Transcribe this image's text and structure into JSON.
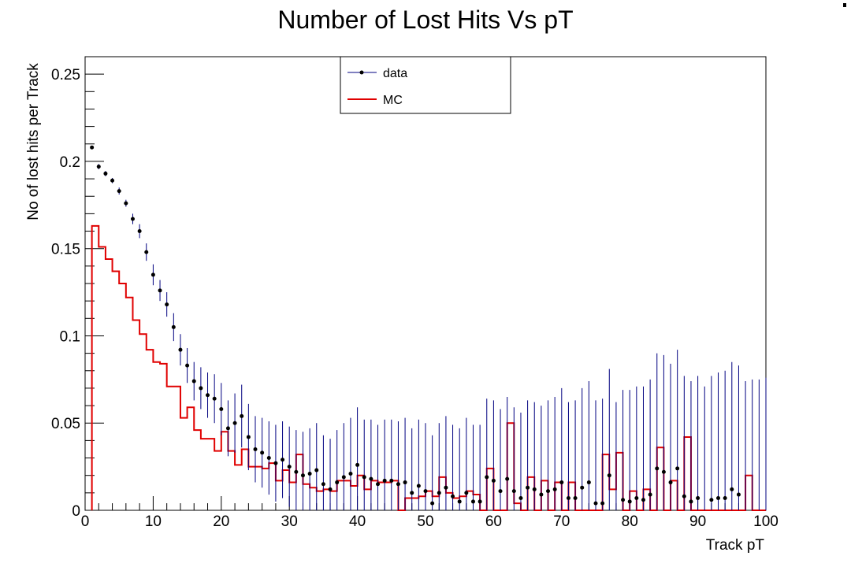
{
  "chart_data": {
    "type": "scatter",
    "title": "Number of Lost Hits Vs pT",
    "xlabel": "Track pT",
    "ylabel": "No of lost hits per Track",
    "xlim": [
      0,
      100
    ],
    "ylim": [
      0,
      0.26
    ],
    "x_ticks": [
      "0",
      "10",
      "20",
      "30",
      "40",
      "50",
      "60",
      "70",
      "80",
      "90",
      "100"
    ],
    "y_ticks": [
      "0",
      "0.05",
      "0.1",
      "0.15",
      "0.2",
      "0.25"
    ],
    "legend_position": "top-center",
    "series": [
      {
        "name": "data",
        "kind": "points-with-errors",
        "color": "#000080",
        "marker_color": "#000000",
        "x": [
          1,
          2,
          3,
          4,
          5,
          6,
          7,
          8,
          9,
          10,
          11,
          12,
          13,
          14,
          15,
          16,
          17,
          18,
          19,
          20,
          21,
          22,
          23,
          24,
          25,
          26,
          27,
          28,
          29,
          30,
          31,
          32,
          33,
          34,
          35,
          36,
          37,
          38,
          39,
          40,
          41,
          42,
          43,
          44,
          45,
          46,
          47,
          48,
          49,
          50,
          51,
          52,
          53,
          54,
          55,
          56,
          57,
          58,
          59,
          60,
          61,
          62,
          63,
          64,
          65,
          66,
          67,
          68,
          69,
          70,
          71,
          72,
          73,
          74,
          75,
          76,
          77,
          78,
          79,
          80,
          81,
          82,
          83,
          84,
          85,
          86,
          87,
          88,
          89,
          90,
          91,
          92,
          93,
          94,
          95,
          96,
          97,
          98,
          99,
          100
        ],
        "y": [
          0.208,
          0.197,
          0.193,
          0.189,
          0.183,
          0.176,
          0.167,
          0.16,
          0.148,
          0.135,
          0.126,
          0.118,
          0.105,
          0.092,
          0.083,
          0.074,
          0.07,
          0.066,
          0.064,
          0.058,
          0.047,
          0.05,
          0.054,
          0.042,
          0.035,
          0.033,
          0.03,
          0.027,
          0.029,
          0.025,
          0.022,
          0.02,
          0.021,
          0.023,
          0.015,
          0.012,
          0.016,
          0.019,
          0.021,
          0.026,
          0.019,
          0.018,
          0.015,
          0.017,
          0.017,
          0.015,
          0.016,
          0.01,
          0.014,
          0.011,
          0.004,
          0.01,
          0.013,
          0.008,
          0.005,
          0.01,
          0.005,
          0.005,
          0.019,
          0.017,
          0.011,
          0.018,
          0.011,
          0.007,
          0.013,
          0.012,
          0.009,
          0.011,
          0.012,
          0.016,
          0.007,
          0.007,
          0.013,
          0.016,
          0.004,
          0.004,
          0.02,
          0.0,
          0.006,
          0.005,
          0.007,
          0.006,
          0.009,
          0.024,
          0.022,
          0.016,
          0.024,
          0.008,
          0.005,
          0.007,
          0.0,
          0.006,
          0.007,
          0.007,
          0.012,
          0.009,
          0.0,
          0.0,
          0.0,
          0.0
        ],
        "err": [
          0.001,
          0.0015,
          0.0015,
          0.0015,
          0.002,
          0.002,
          0.003,
          0.004,
          0.005,
          0.006,
          0.006,
          0.007,
          0.008,
          0.009,
          0.01,
          0.011,
          0.012,
          0.013,
          0.014,
          0.015,
          0.016,
          0.017,
          0.018,
          0.019,
          0.019,
          0.02,
          0.021,
          0.022,
          0.022,
          0.023,
          0.024,
          0.025,
          0.026,
          0.027,
          0.028,
          0.029,
          0.03,
          0.031,
          0.032,
          0.033,
          0.033,
          0.034,
          0.034,
          0.035,
          0.035,
          0.036,
          0.037,
          0.037,
          0.038,
          0.039,
          0.039,
          0.04,
          0.041,
          0.041,
          0.042,
          0.043,
          0.044,
          0.044,
          0.045,
          0.046,
          0.047,
          0.047,
          0.048,
          0.049,
          0.05,
          0.05,
          0.051,
          0.052,
          0.053,
          0.054,
          0.055,
          0.056,
          0.057,
          0.058,
          0.059,
          0.06,
          0.061,
          0.062,
          0.063,
          0.064,
          0.064,
          0.065,
          0.066,
          0.066,
          0.067,
          0.068,
          0.068,
          0.069,
          0.069,
          0.07,
          0.071,
          0.071,
          0.072,
          0.073,
          0.073,
          0.074,
          0.074,
          0.075,
          0.075,
          0.076
        ]
      },
      {
        "name": "MC",
        "kind": "step",
        "color": "#e00000",
        "bin_edges_start": 1,
        "bin_width": 1,
        "values": [
          0.163,
          0.151,
          0.144,
          0.137,
          0.13,
          0.122,
          0.109,
          0.101,
          0.092,
          0.085,
          0.084,
          0.071,
          0.071,
          0.053,
          0.059,
          0.046,
          0.041,
          0.041,
          0.034,
          0.045,
          0.034,
          0.026,
          0.035,
          0.025,
          0.025,
          0.024,
          0.027,
          0.017,
          0.023,
          0.016,
          0.032,
          0.015,
          0.013,
          0.011,
          0.012,
          0.011,
          0.017,
          0.017,
          0.014,
          0.02,
          0.012,
          0.017,
          0.016,
          0.016,
          0.017,
          0.0,
          0.007,
          0.007,
          0.008,
          0.011,
          0.008,
          0.019,
          0.01,
          0.007,
          0.008,
          0.011,
          0.009,
          0.0,
          0.024,
          0.0,
          0.0,
          0.05,
          0.004,
          0.0,
          0.019,
          0.0,
          0.017,
          0.0,
          0.016,
          0.0,
          0.016,
          0.0,
          0.0,
          0.0,
          0.0,
          0.032,
          0.012,
          0.033,
          0.0,
          0.011,
          0.0,
          0.012,
          0.0,
          0.036,
          0.0,
          0.017,
          0.0,
          0.042,
          0.0,
          0.0,
          0.0,
          0.0,
          0.0,
          0.0,
          0.0,
          0.0,
          0.02,
          0.0,
          0.0
        ]
      }
    ]
  }
}
